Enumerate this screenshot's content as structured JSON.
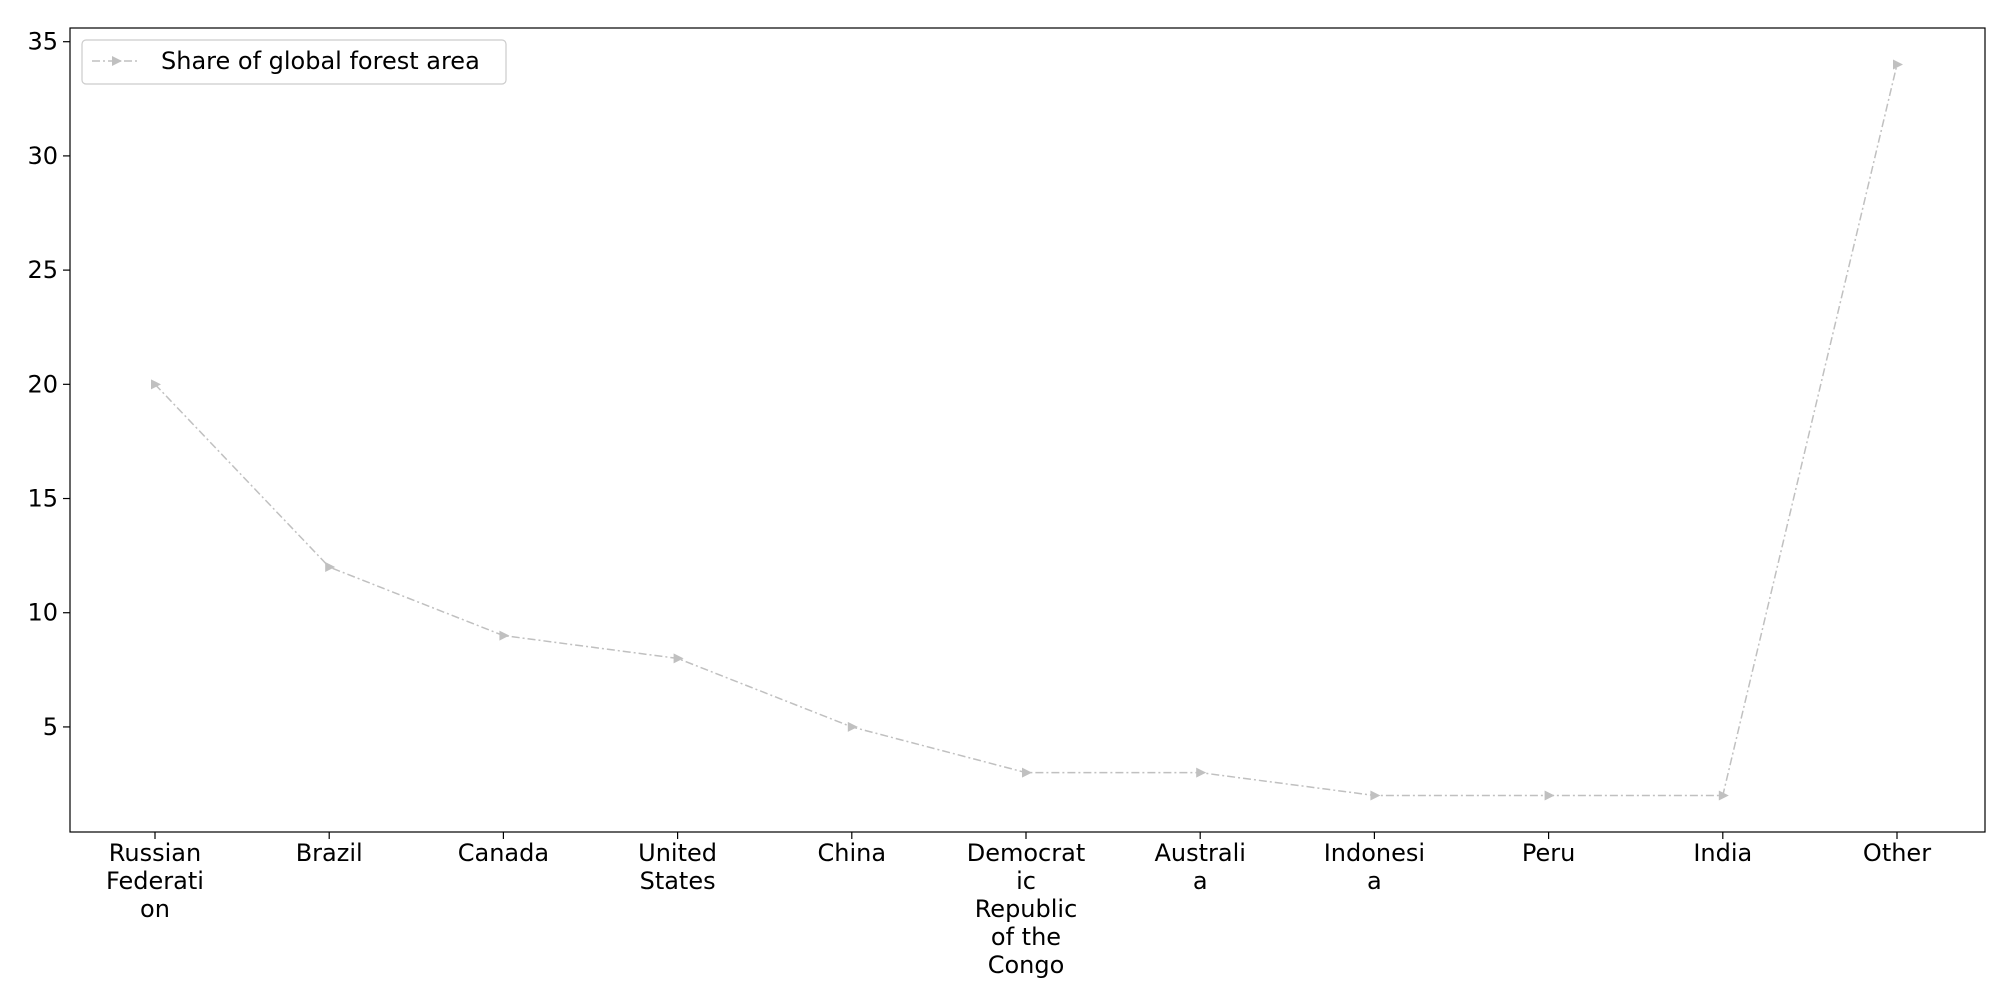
{
  "chart_data": {
    "type": "line",
    "title": "",
    "xlabel": "",
    "ylabel": "",
    "categories": [
      [
        "Russian",
        "Federati",
        "on"
      ],
      [
        "Brazil"
      ],
      [
        "Canada"
      ],
      [
        "United",
        "States"
      ],
      [
        "China"
      ],
      [
        "Democrat",
        "ic",
        "Republic",
        "of the",
        "Congo"
      ],
      [
        "Australi",
        "a"
      ],
      [
        "Indonesi",
        "a"
      ],
      [
        "Peru"
      ],
      [
        "India"
      ],
      [
        "Other"
      ]
    ],
    "series": [
      {
        "name": "Share of global forest area",
        "values": [
          20,
          12,
          9,
          8,
          5,
          3,
          3,
          2,
          2,
          2,
          34
        ],
        "color": "#c0c0c0",
        "line_style": "dash-dot",
        "marker": "triangle-right"
      }
    ],
    "yticks": [
      "5",
      "10",
      "15",
      "20",
      "25",
      "30",
      "35"
    ],
    "ylim": [
      0.4,
      35.6
    ],
    "grid": false,
    "legend_position": "top-left"
  }
}
